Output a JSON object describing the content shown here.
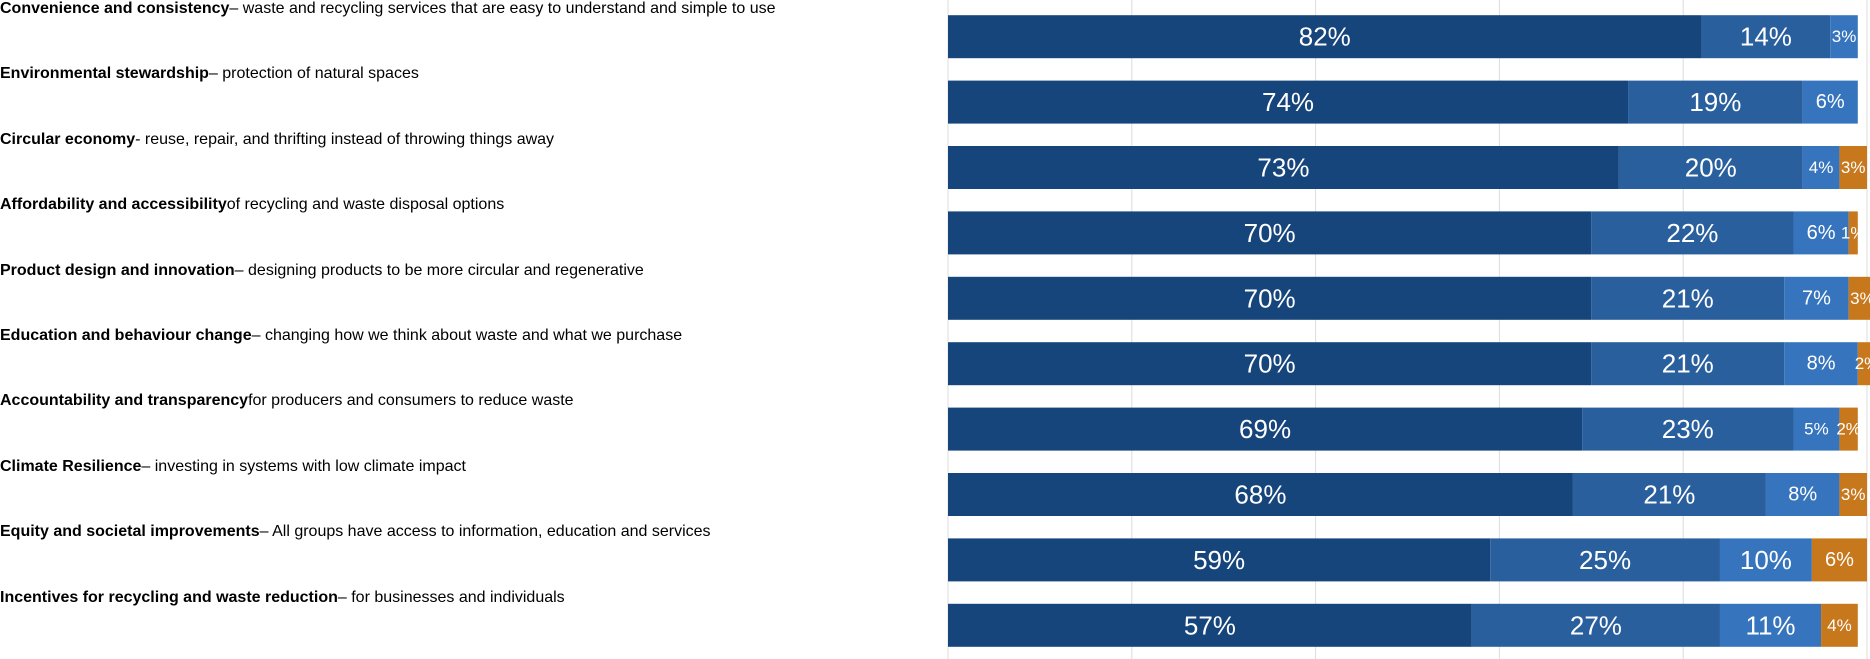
{
  "chart_data": {
    "type": "stacked-barh",
    "categories": [
      "Convenience and consistency",
      "Environmental stewardship",
      "Circular economy",
      "Affordability and accessibility",
      "Product design and innovation",
      "Education and behaviour change",
      "Accountability and transparency",
      "Climate Resilience",
      "Equity and societal improvements",
      "Incentives for recycling and waste reduction"
    ],
    "category_descriptions": [
      "– waste and recycling services that are easy to understand and simple to use",
      "– protection of natural spaces",
      "- reuse, repair, and thrifting instead of throwing things away",
      "of recycling and waste disposal options",
      "– designing products to be more circular and regenerative",
      "– changing how we think about waste and what we purchase",
      "for producers and consumers to reduce waste",
      "– investing in systems with low climate impact",
      "– All groups have access to information, education and services",
      "– for businesses and individuals"
    ],
    "series": [
      {
        "color": "#16457c",
        "values": [
          82,
          74,
          73,
          70,
          70,
          70,
          69,
          68,
          59,
          57
        ],
        "value_labels": [
          "82%",
          "74%",
          "73%",
          "70%",
          "70%",
          "70%",
          "69%",
          "68%",
          "59%",
          "57%"
        ]
      },
      {
        "color": "#2a5f9e",
        "values": [
          14,
          19,
          20,
          22,
          21,
          21,
          23,
          21,
          25,
          27
        ],
        "value_labels": [
          "14%",
          "19%",
          "20%",
          "22%",
          "21%",
          "21%",
          "23%",
          "21%",
          "25%",
          "27%"
        ]
      },
      {
        "color": "#3675bd",
        "values": [
          3,
          6,
          4,
          6,
          7,
          8,
          5,
          8,
          10,
          11
        ],
        "value_labels": [
          "3%",
          "6%",
          "4%",
          "6%",
          "7%",
          "8%",
          "5%",
          "8%",
          "10%",
          "11%"
        ]
      },
      {
        "color": "#c8781c",
        "values": [
          null,
          null,
          3,
          1,
          3,
          2,
          2,
          3,
          6,
          4
        ],
        "value_labels": [
          null,
          null,
          "3%",
          "1%",
          "3%",
          "2%",
          "2%",
          "3%",
          "6%",
          "4%"
        ]
      }
    ],
    "xlim": [
      0,
      100
    ],
    "xticks": [
      0,
      20,
      40,
      60,
      80,
      100
    ],
    "grid": true
  }
}
